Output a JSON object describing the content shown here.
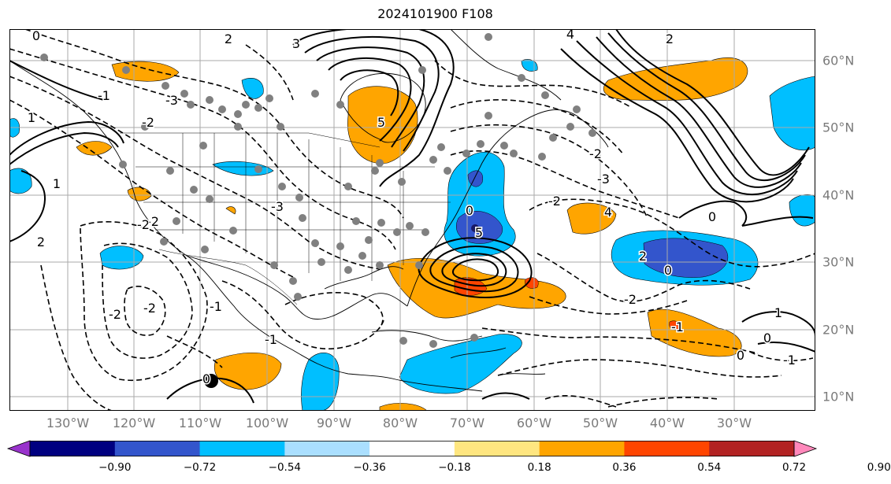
{
  "title": "2024101900 F108",
  "lon_labels": [
    "130°W",
    "120°W",
    "110°W",
    "100°W",
    "90°W",
    "80°W",
    "70°W",
    "60°W",
    "50°W",
    "40°W",
    "30°W"
  ],
  "lat_labels": [
    "60°N",
    "50°N",
    "40°N",
    "30°N",
    "20°N",
    "10°N"
  ],
  "colorbar": {
    "ticks": [
      "−0.90",
      "−0.72",
      "−0.54",
      "−0.36",
      "−0.18",
      "0.18",
      "0.36",
      "0.54",
      "0.72",
      "0.90"
    ],
    "colors": [
      "#9933cc",
      "#000080",
      "#3355cc",
      "#00bfff",
      "#aadfff",
      "#ffffff",
      "#ffe680",
      "#ffa500",
      "#ff4500",
      "#b22222",
      "#ff88bb"
    ]
  },
  "contour_labels": [
    "0",
    "2",
    "3",
    "4",
    "5",
    "-1",
    "-2",
    "-3",
    "1",
    "2",
    "-2",
    "-3",
    "0",
    "5",
    "4",
    "-2",
    "-3",
    "-2",
    "1",
    "-1",
    "-2",
    "-2",
    "0",
    "-1",
    "0",
    "2",
    "0",
    "-2",
    "-1",
    "2",
    "-2",
    "1",
    "0",
    "0",
    "-1"
  ],
  "colors": {
    "positive_fill": "#ffa500",
    "negative_fill": "#00bfff",
    "strong_negative": "#3355cc",
    "strong_positive": "#ff4500",
    "station": "#808080"
  }
}
